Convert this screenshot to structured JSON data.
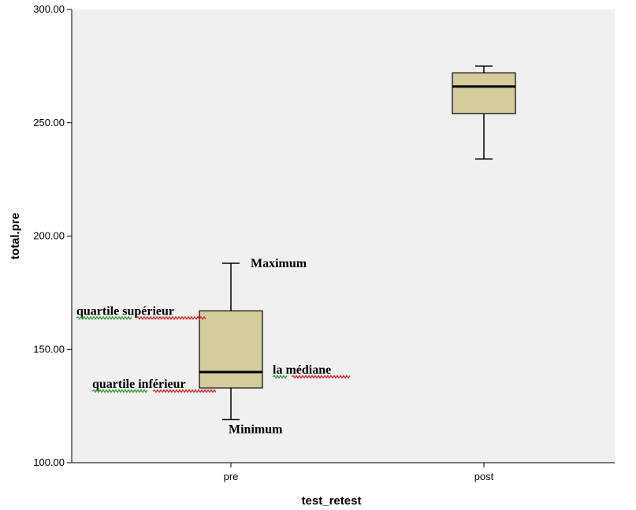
{
  "chart_data": {
    "type": "box",
    "title": "",
    "xlabel": "test_retest",
    "ylabel": "total.pre",
    "ylim": [
      100,
      300
    ],
    "yticks": [
      "100.00",
      "150.00",
      "200.00",
      "250.00",
      "300.00"
    ],
    "yticks_values": [
      100,
      150,
      200,
      250,
      300
    ],
    "categories": [
      "pre",
      "post"
    ],
    "boxes": [
      {
        "category": "pre",
        "min": 119,
        "q1": 133,
        "median": 140,
        "q3": 167,
        "max": 188
      },
      {
        "category": "post",
        "min": 234,
        "q1": 254,
        "median": 266,
        "q3": 272,
        "max": 275
      }
    ],
    "annotations": [
      {
        "text": "Maximum",
        "category": "pre",
        "value": 188
      },
      {
        "text": "quartile supérieur",
        "category": "pre",
        "value": 167
      },
      {
        "text": "la médiane",
        "category": "pre",
        "value": 140
      },
      {
        "text": "quartile inférieur",
        "category": "pre",
        "value": 133
      },
      {
        "text": "Minimum",
        "category": "pre",
        "value": 119
      }
    ],
    "colors": {
      "box_fill": "#d4cc9c",
      "plot_background": "#f0f0f0"
    }
  }
}
